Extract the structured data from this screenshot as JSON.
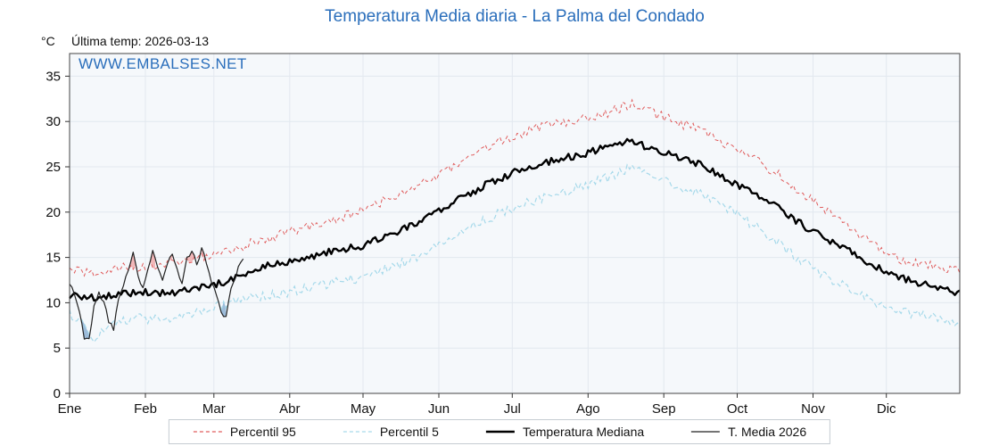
{
  "title": "Temperatura Media diaria - La Palma del Condado",
  "units_label": "°C",
  "last_temp_label": "Última temp: 2026-03-13",
  "watermark": "WWW.EMBALSES.NET",
  "colors": {
    "title": "#2a6ebb",
    "plot_bg": "#f5f8fb",
    "grid": "#e2e8ef",
    "frame": "#444444",
    "p95": "#e05c5c",
    "p5": "#a6d9ea",
    "median": "#000000",
    "t2026": "#222222",
    "fill_above": "#f0a3a3",
    "fill_below": "#7fa8cf"
  },
  "legend": {
    "items": [
      {
        "label": "Percentil 95"
      },
      {
        "label": "Percentil 5"
      },
      {
        "label": "Temperatura Mediana"
      },
      {
        "label": "T. Media 2026"
      }
    ]
  },
  "chart_data": {
    "type": "line",
    "title": "Temperatura Media diaria - La Palma del Condado",
    "xlabel": "",
    "ylabel": "°C",
    "ylim": [
      0,
      37.5
    ],
    "yticks": [
      0,
      5,
      10,
      15,
      20,
      25,
      30,
      35
    ],
    "months": [
      {
        "label": "Ene",
        "day": 1
      },
      {
        "label": "Feb",
        "day": 32
      },
      {
        "label": "Mar",
        "day": 60
      },
      {
        "label": "Abr",
        "day": 91
      },
      {
        "label": "May",
        "day": 121
      },
      {
        "label": "Jun",
        "day": 152
      },
      {
        "label": "Jul",
        "day": 182
      },
      {
        "label": "Ago",
        "day": 213
      },
      {
        "label": "Sep",
        "day": 244
      },
      {
        "label": "Oct",
        "day": 274
      },
      {
        "label": "Nov",
        "day": 305
      },
      {
        "label": "Dic",
        "day": 335
      }
    ],
    "series": [
      {
        "name": "Percentil 95",
        "dash": true,
        "width": 1,
        "noise": 0.55,
        "seed": 7,
        "days": [
          1,
          11,
          21,
          31,
          41,
          51,
          61,
          71,
          81,
          91,
          101,
          111,
          121,
          131,
          141,
          151,
          161,
          171,
          181,
          191,
          201,
          211,
          221,
          231,
          241,
          251,
          261,
          271,
          281,
          291,
          301,
          311,
          321,
          331,
          341,
          351,
          361,
          365
        ],
        "values": [
          13.5,
          13.2,
          13.8,
          14.0,
          14.2,
          14.8,
          15.3,
          16.2,
          17.0,
          17.8,
          18.5,
          19.3,
          20.2,
          21.5,
          22.5,
          24.0,
          25.5,
          27.0,
          28.2,
          29.2,
          29.8,
          30.3,
          31.0,
          32.0,
          30.8,
          29.8,
          28.8,
          27.2,
          25.8,
          24.2,
          22.0,
          20.0,
          18.0,
          16.2,
          14.8,
          14.2,
          13.8,
          13.5
        ]
      },
      {
        "name": "Percentil 5",
        "dash": true,
        "width": 1,
        "noise": 0.55,
        "seed": 13,
        "days": [
          1,
          11,
          21,
          31,
          41,
          51,
          61,
          71,
          81,
          91,
          101,
          111,
          121,
          131,
          141,
          151,
          161,
          171,
          181,
          191,
          201,
          211,
          221,
          231,
          241,
          251,
          261,
          271,
          281,
          291,
          301,
          311,
          321,
          331,
          341,
          351,
          361,
          365
        ],
        "values": [
          9.0,
          6.2,
          8.0,
          8.3,
          8.0,
          8.8,
          9.5,
          10.2,
          10.8,
          11.2,
          11.8,
          12.3,
          12.8,
          13.8,
          14.8,
          16.2,
          17.8,
          19.2,
          20.3,
          21.3,
          22.0,
          22.8,
          23.8,
          25.0,
          23.8,
          22.8,
          21.8,
          20.3,
          18.5,
          16.5,
          14.5,
          12.8,
          11.3,
          10.0,
          9.0,
          8.5,
          8.0,
          7.8
        ]
      },
      {
        "name": "Temperatura Mediana",
        "dash": false,
        "width": 2.4,
        "noise": 0.4,
        "seed": 23,
        "days": [
          1,
          11,
          21,
          31,
          41,
          51,
          61,
          71,
          81,
          91,
          101,
          111,
          121,
          131,
          141,
          151,
          161,
          171,
          181,
          191,
          201,
          211,
          221,
          231,
          241,
          251,
          261,
          271,
          281,
          291,
          301,
          311,
          321,
          331,
          341,
          351,
          361,
          365
        ],
        "values": [
          10.8,
          10.5,
          11.0,
          11.2,
          11.0,
          11.5,
          12.0,
          13.0,
          14.0,
          14.5,
          15.2,
          15.8,
          16.3,
          17.5,
          18.5,
          20.0,
          21.5,
          23.0,
          24.2,
          25.2,
          25.8,
          26.4,
          27.2,
          27.8,
          26.8,
          26.0,
          25.0,
          23.5,
          22.0,
          20.5,
          18.5,
          17.0,
          15.5,
          14.0,
          12.8,
          12.0,
          11.2,
          11.0
        ]
      },
      {
        "name": "T. Media 2026",
        "dash": false,
        "width": 1.2,
        "noise": 0.25,
        "seed": 31,
        "days": [
          1,
          3,
          5,
          7,
          9,
          11,
          13,
          15,
          17,
          19,
          21,
          23,
          25,
          27,
          29,
          31,
          33,
          35,
          37,
          39,
          41,
          43,
          45,
          47,
          49,
          51,
          53,
          55,
          57,
          59,
          61,
          63,
          65,
          67,
          69,
          71,
          72
        ],
        "values": [
          12.3,
          11.0,
          9.0,
          6.2,
          6.0,
          9.5,
          11.0,
          10.0,
          8.0,
          7.2,
          10.5,
          12.0,
          13.5,
          15.4,
          13.0,
          11.5,
          13.8,
          15.8,
          14.0,
          12.5,
          14.5,
          15.6,
          13.5,
          12.0,
          14.8,
          15.8,
          14.2,
          15.9,
          14.5,
          12.5,
          11.0,
          8.8,
          8.3,
          11.5,
          13.0,
          14.5,
          15.0
        ]
      }
    ]
  }
}
